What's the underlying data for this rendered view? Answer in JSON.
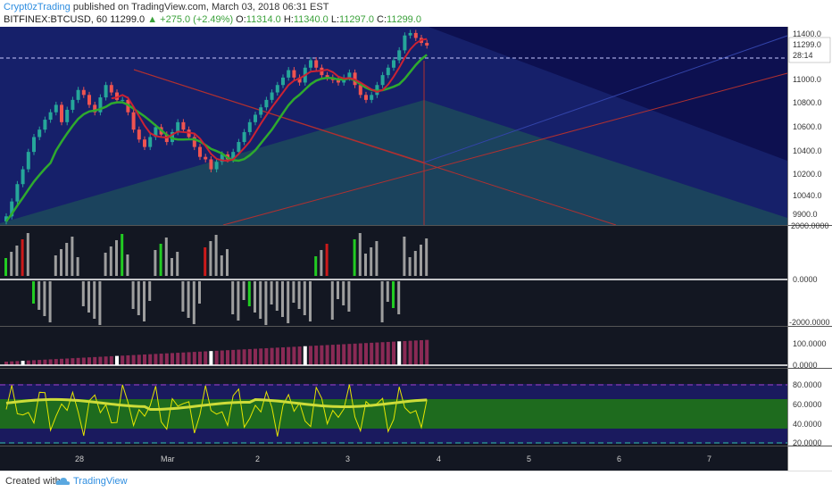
{
  "header": {
    "user": "Crypt0zTrading",
    "published_text": "published on TradingView.com, March 03, 2018 06:31 EST",
    "symbol": "BITFINEX:BTCUSD, 60",
    "last": "11299.0",
    "change": "▲ +275.0 (+2.49%)",
    "o_label": "O:",
    "o_val": "11314.0",
    "h_label": "H:",
    "h_val": "11340.0",
    "l_label": "L:",
    "l_val": "11297.0",
    "c_label": "C:",
    "c_val": "11299.0"
  },
  "footer": {
    "created": "Created with",
    "brand": "TradingView"
  },
  "colors": {
    "bg_dark": "#131722",
    "price_bg": "#0d1050",
    "up": "#26a69a",
    "down": "#ef5350",
    "ma_green": "#2eaa2e",
    "ma_red": "#cc2233",
    "rsi_line": "#cddc39",
    "rsi_fast": "#e6e600",
    "rsi_band": "#1e6b1e"
  },
  "chart_data": [
    {
      "type": "candlestick",
      "pane": "price",
      "y_ticks": [
        "11400.0",
        "11299.0",
        "28:14",
        "11000.0",
        "10800.0",
        "10600.0",
        "10400.0",
        "10200.0",
        "10040.0",
        "9900.0"
      ],
      "ylim": [
        9850,
        11450
      ],
      "last_price": 11299.0,
      "close": [
        9920,
        10040,
        10180,
        10300,
        10440,
        10560,
        10620,
        10700,
        10760,
        10820,
        10680,
        10780,
        10860,
        10940,
        10900,
        10820,
        10760,
        10880,
        10980,
        10920,
        10860,
        10860,
        10760,
        10620,
        10540,
        10480,
        10560,
        10640,
        10580,
        10520,
        10600,
        10680,
        10620,
        10560,
        10480,
        10400,
        10380,
        10300,
        10360,
        10420,
        10380,
        10440,
        10520,
        10600,
        10680,
        10740,
        10800,
        10860,
        10920,
        10980,
        11040,
        11100,
        11040,
        11000,
        11120,
        11180,
        11120,
        11060,
        11040,
        11020,
        11000,
        11040,
        11080,
        10980,
        10900,
        10860,
        10900,
        10980,
        11060,
        11120,
        11180,
        11260,
        11380,
        11400,
        11360,
        11320,
        11299
      ]
    },
    {
      "type": "bar",
      "pane": "histogram-1",
      "y_ticks": [
        "2000.0000",
        "0.0000",
        "-2000.0000"
      ],
      "ylim": [
        -2000,
        2000
      ]
    },
    {
      "type": "bar",
      "pane": "histogram-2",
      "y_ticks": [
        "100.0000",
        "0.0000"
      ],
      "ylim": [
        0,
        140
      ]
    },
    {
      "type": "line",
      "pane": "oscillator",
      "y_ticks": [
        "80.0000",
        "60.0000",
        "40.0000",
        "20.0000"
      ],
      "ylim": [
        10,
        95
      ]
    }
  ],
  "x_axis": {
    "ticks": [
      "28",
      "Mar",
      "2",
      "3",
      "4",
      "5",
      "6",
      "7"
    ]
  }
}
